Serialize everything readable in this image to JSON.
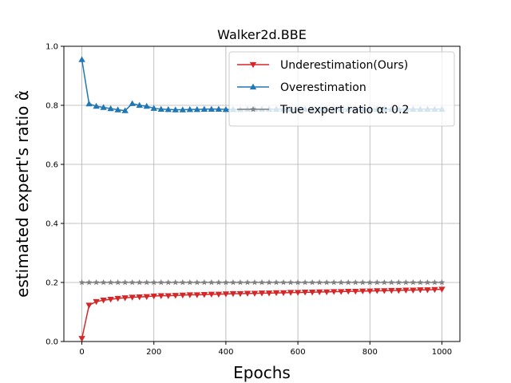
{
  "chart_data": {
    "type": "line",
    "title": "Walker2d.BBE",
    "xlabel": "Epochs",
    "ylabel": "estimated expert's ratio α̂",
    "xlim": [
      -50,
      1050
    ],
    "ylim": [
      0.0,
      1.0
    ],
    "xticks": [
      0,
      200,
      400,
      600,
      800,
      1000
    ],
    "yticks": [
      0.0,
      0.2,
      0.4,
      0.6,
      0.8,
      1.0
    ],
    "grid": true,
    "legend_position": "top-right",
    "x": [
      0,
      20,
      40,
      60,
      80,
      100,
      120,
      140,
      160,
      180,
      200,
      220,
      240,
      260,
      280,
      300,
      320,
      340,
      360,
      380,
      400,
      420,
      440,
      460,
      480,
      500,
      520,
      540,
      560,
      580,
      600,
      620,
      640,
      660,
      680,
      700,
      720,
      740,
      760,
      780,
      800,
      820,
      840,
      860,
      880,
      900,
      920,
      940,
      960,
      980,
      1000
    ],
    "series": [
      {
        "name": "Underestimation(Ours)",
        "color": "#d62728",
        "marker": "triangle-down",
        "values": [
          0.01,
          0.123,
          0.135,
          0.14,
          0.143,
          0.146,
          0.148,
          0.15,
          0.151,
          0.152,
          0.154,
          0.155,
          0.155,
          0.156,
          0.157,
          0.158,
          0.158,
          0.159,
          0.16,
          0.16,
          0.161,
          0.162,
          0.162,
          0.163,
          0.163,
          0.164,
          0.164,
          0.165,
          0.165,
          0.166,
          0.166,
          0.167,
          0.167,
          0.168,
          0.168,
          0.169,
          0.169,
          0.17,
          0.17,
          0.171,
          0.171,
          0.172,
          0.172,
          0.173,
          0.173,
          0.174,
          0.174,
          0.175,
          0.175,
          0.176,
          0.177
        ]
      },
      {
        "name": "Overestimation",
        "color": "#1f77b4",
        "marker": "triangle-up",
        "values": [
          0.955,
          0.805,
          0.797,
          0.793,
          0.789,
          0.785,
          0.782,
          0.806,
          0.8,
          0.797,
          0.79,
          0.787,
          0.786,
          0.785,
          0.785,
          0.786,
          0.786,
          0.787,
          0.787,
          0.787,
          0.786,
          0.786,
          0.786,
          0.787,
          0.787,
          0.787,
          0.787,
          0.787,
          0.787,
          0.787,
          0.787,
          0.787,
          0.787,
          0.787,
          0.787,
          0.787,
          0.787,
          0.787,
          0.787,
          0.787,
          0.787,
          0.787,
          0.787,
          0.787,
          0.787,
          0.787,
          0.787,
          0.787,
          0.787,
          0.787,
          0.787
        ]
      },
      {
        "name": "True expert ratio α: 0.2",
        "color": "#808080",
        "marker": "star",
        "values": [
          0.2,
          0.2,
          0.2,
          0.2,
          0.2,
          0.2,
          0.2,
          0.2,
          0.2,
          0.2,
          0.2,
          0.2,
          0.2,
          0.2,
          0.2,
          0.2,
          0.2,
          0.2,
          0.2,
          0.2,
          0.2,
          0.2,
          0.2,
          0.2,
          0.2,
          0.2,
          0.2,
          0.2,
          0.2,
          0.2,
          0.2,
          0.2,
          0.2,
          0.2,
          0.2,
          0.2,
          0.2,
          0.2,
          0.2,
          0.2,
          0.2,
          0.2,
          0.2,
          0.2,
          0.2,
          0.2,
          0.2,
          0.2,
          0.2,
          0.2,
          0.2
        ]
      }
    ]
  }
}
